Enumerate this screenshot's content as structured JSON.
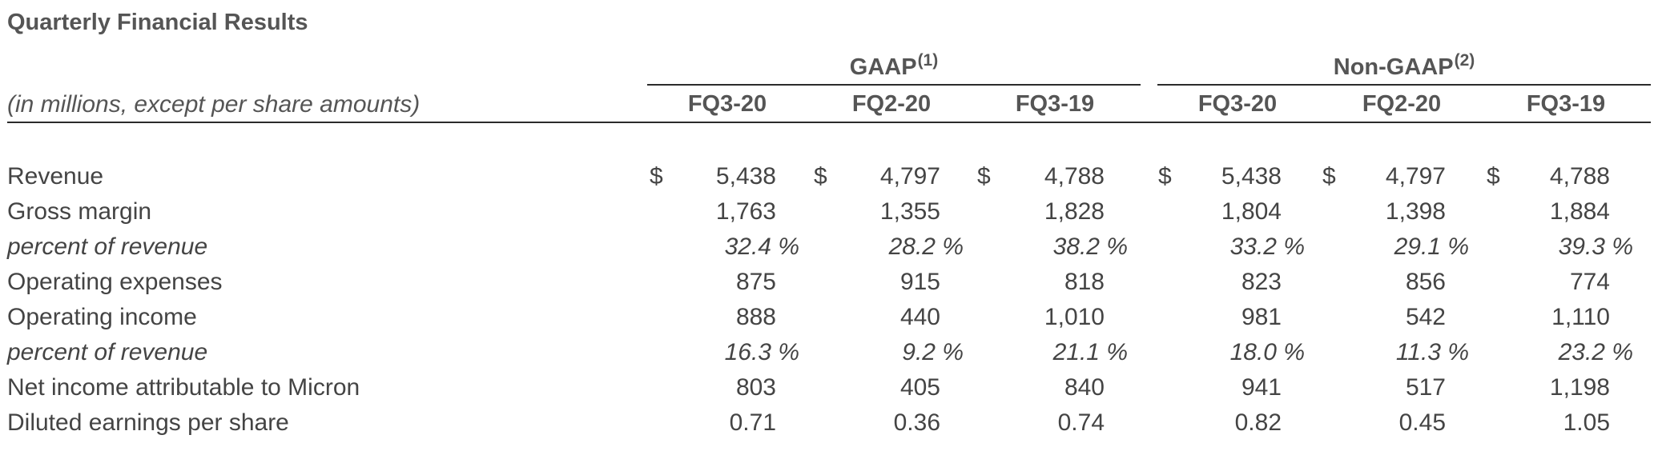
{
  "title": "Quarterly Financial Results",
  "units_note": "(in millions, except per share amounts)",
  "groups": [
    {
      "label": "GAAP",
      "note": "(1)"
    },
    {
      "label": "Non-GAAP",
      "note": "(2)"
    }
  ],
  "columns": [
    "FQ3-20",
    "FQ2-20",
    "FQ3-19",
    "FQ3-20",
    "FQ2-20",
    "FQ3-19"
  ],
  "currency_symbol": "$",
  "rows": [
    {
      "label": "Revenue",
      "italic": false,
      "currency": true,
      "values": [
        "5,438",
        "4,797",
        "4,788",
        "5,438",
        "4,797",
        "4,788"
      ]
    },
    {
      "label": "Gross margin",
      "italic": false,
      "currency": false,
      "values": [
        "1,763",
        "1,355",
        "1,828",
        "1,804",
        "1,398",
        "1,884"
      ]
    },
    {
      "label": "percent of revenue",
      "italic": true,
      "currency": false,
      "values": [
        "32.4 %",
        "28.2 %",
        "38.2 %",
        "33.2 %",
        "29.1 %",
        "39.3 %"
      ]
    },
    {
      "label": "Operating expenses",
      "italic": false,
      "currency": false,
      "values": [
        "875",
        "915",
        "818",
        "823",
        "856",
        "774"
      ]
    },
    {
      "label": "Operating income",
      "italic": false,
      "currency": false,
      "values": [
        "888",
        "440",
        "1,010",
        "981",
        "542",
        "1,110"
      ]
    },
    {
      "label": "percent of revenue",
      "italic": true,
      "currency": false,
      "values": [
        "16.3 %",
        "9.2 %",
        "21.1 %",
        "18.0 %",
        "11.3 %",
        "23.2 %"
      ]
    },
    {
      "label": "Net income attributable to Micron",
      "italic": false,
      "currency": false,
      "values": [
        "803",
        "405",
        "840",
        "941",
        "517",
        "1,198"
      ]
    },
    {
      "label": "Diluted earnings per share",
      "italic": false,
      "currency": false,
      "values": [
        "0.71",
        "0.36",
        "0.74",
        "0.82",
        "0.45",
        "1.05"
      ]
    }
  ]
}
